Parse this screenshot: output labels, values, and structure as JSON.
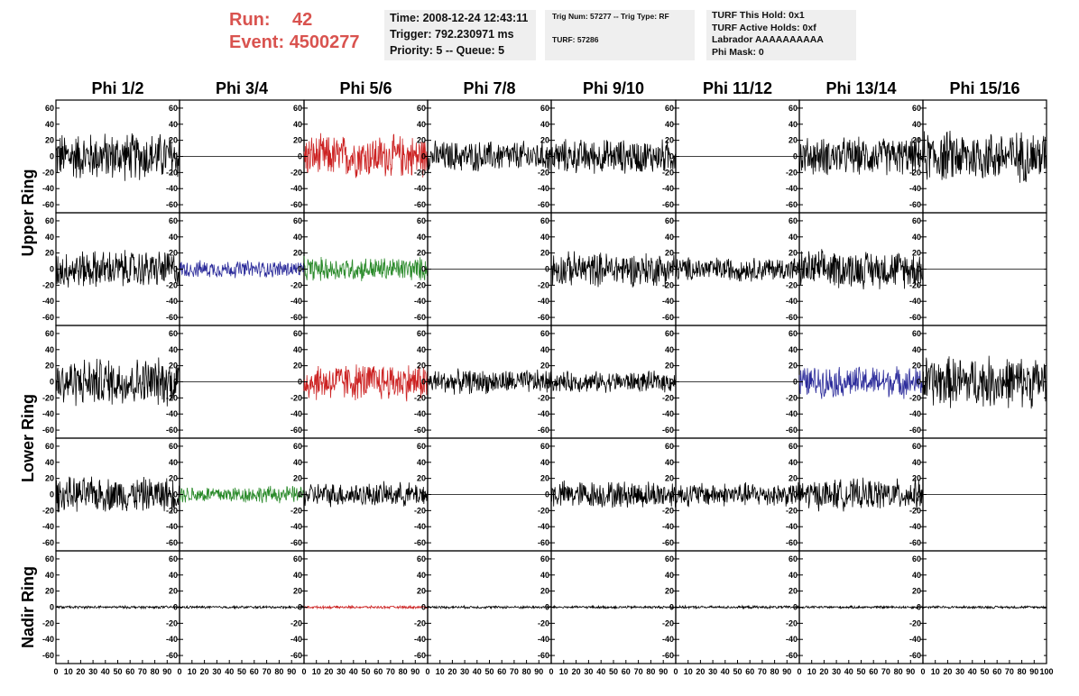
{
  "run": {
    "run_label": "Run:",
    "run_value": "42",
    "event_label": "Event:",
    "event_value": "4500277"
  },
  "info": {
    "time": "Time: 2008-12-24 12:43:11",
    "trigger": "Trigger: 792.230971 ms",
    "priority": "Priority: 5 -- Queue: 5",
    "trig_num": "Trig Num: 57277 -- Trig Type: RF",
    "turf": "TURF: 57286",
    "turf_hold": "TURF This Hold: 0x1",
    "turf_active": "TURF Active Holds: 0xf",
    "labrador": "Labrador AAAAAAAAAA",
    "phi_mask": "Phi Mask: 0"
  },
  "colors": {
    "black": "#000000",
    "red": "#cc2222",
    "blue": "#2a2a9a",
    "green": "#2a8a2a",
    "accent_header": "#d9534f"
  },
  "chart_data": {
    "type": "line",
    "title": "",
    "columns": [
      "Phi 1/2",
      "Phi 3/4",
      "Phi 5/6",
      "Phi 7/8",
      "Phi 9/10",
      "Phi 11/12",
      "Phi 13/14",
      "Phi 15/16"
    ],
    "row_groups": [
      "Upper Ring",
      "Lower Ring",
      "Nadir Ring"
    ],
    "rows": 5,
    "xlim": [
      0,
      100
    ],
    "ylim": [
      -70,
      70
    ],
    "y_ticks": [
      -60,
      -40,
      -20,
      0,
      20,
      40,
      60
    ],
    "x_tick_labels": [
      "0",
      "10",
      "20",
      "30",
      "40",
      "50",
      "60",
      "70",
      "80",
      "90",
      "100"
    ],
    "panels": [
      [
        {
          "color": "black",
          "amp": 28
        },
        {
          "color": "flat",
          "amp": 0
        },
        {
          "color": "red",
          "amp": 25
        },
        {
          "color": "black",
          "amp": 18
        },
        {
          "color": "black",
          "amp": 20
        },
        {
          "color": "flat",
          "amp": 0
        },
        {
          "color": "black",
          "amp": 22
        },
        {
          "color": "black",
          "amp": 30
        }
      ],
      [
        {
          "color": "black",
          "amp": 22
        },
        {
          "color": "blue",
          "amp": 10
        },
        {
          "color": "green",
          "amp": 14
        },
        {
          "color": "flat",
          "amp": 0
        },
        {
          "color": "black",
          "amp": 20
        },
        {
          "color": "black",
          "amp": 14
        },
        {
          "color": "black",
          "amp": 22
        },
        {
          "color": "flat",
          "amp": 0
        }
      ],
      [
        {
          "color": "black",
          "amp": 28
        },
        {
          "color": "flat",
          "amp": 0
        },
        {
          "color": "red",
          "amp": 22
        },
        {
          "color": "black",
          "amp": 14
        },
        {
          "color": "black",
          "amp": 12
        },
        {
          "color": "flat",
          "amp": 0
        },
        {
          "color": "blue",
          "amp": 18
        },
        {
          "color": "black",
          "amp": 30
        }
      ],
      [
        {
          "color": "black",
          "amp": 20
        },
        {
          "color": "green",
          "amp": 10
        },
        {
          "color": "black",
          "amp": 14
        },
        {
          "color": "flat",
          "amp": 0
        },
        {
          "color": "black",
          "amp": 16
        },
        {
          "color": "black",
          "amp": 14
        },
        {
          "color": "black",
          "amp": 18
        },
        {
          "color": "flat",
          "amp": 0
        }
      ],
      [
        {
          "color": "black",
          "amp": 1.5
        },
        {
          "color": "black",
          "amp": 1.5
        },
        {
          "color": "red",
          "amp": 1.5
        },
        {
          "color": "black",
          "amp": 1.5
        },
        {
          "color": "black",
          "amp": 1.5
        },
        {
          "color": "black",
          "amp": 1.5
        },
        {
          "color": "black",
          "amp": 1.5
        },
        {
          "color": "black",
          "amp": 1.5
        }
      ]
    ]
  }
}
